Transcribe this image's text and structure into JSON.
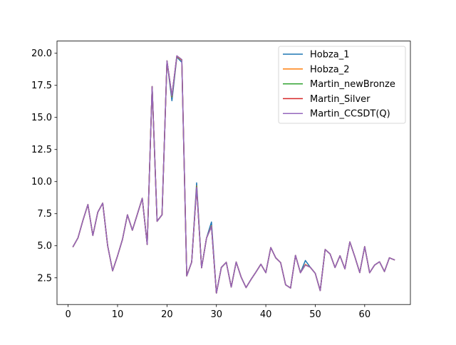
{
  "chart_data": {
    "type": "line",
    "title": "",
    "xlabel": "",
    "ylabel": "",
    "xlim": [
      -2.25,
      69.25
    ],
    "ylim": [
      0.42,
      20.95
    ],
    "x_ticks": [
      0,
      10,
      20,
      30,
      40,
      50,
      60
    ],
    "x_tick_labels": [
      "0",
      "10",
      "20",
      "30",
      "40",
      "50",
      "60"
    ],
    "y_ticks": [
      2.5,
      5.0,
      7.5,
      10.0,
      12.5,
      15.0,
      17.5,
      20.0
    ],
    "y_tick_labels": [
      "2.5",
      "5.0",
      "7.5",
      "10.0",
      "12.5",
      "15.0",
      "17.5",
      "20.0"
    ],
    "grid": false,
    "legend_position": "top-right",
    "x": [
      1,
      2,
      3,
      4,
      5,
      6,
      7,
      8,
      9,
      10,
      11,
      12,
      13,
      14,
      15,
      16,
      17,
      18,
      19,
      20,
      21,
      22,
      23,
      24,
      25,
      26,
      27,
      28,
      29,
      30,
      31,
      32,
      33,
      34,
      35,
      36,
      37,
      38,
      39,
      40,
      41,
      42,
      43,
      44,
      45,
      46,
      47,
      48,
      49,
      50,
      51,
      52,
      53,
      54,
      55,
      56,
      57,
      58,
      59,
      60,
      61,
      62,
      63,
      64,
      65,
      66
    ],
    "series": [
      {
        "name": "Hobza_1",
        "color": "#1f77b4",
        "values": [
          4.93,
          5.62,
          6.98,
          8.21,
          5.8,
          7.61,
          8.32,
          5.0,
          3.05,
          4.21,
          5.5,
          7.41,
          6.21,
          7.45,
          8.7,
          5.1,
          17.4,
          6.91,
          7.41,
          19.4,
          16.3,
          19.7,
          19.3,
          2.65,
          3.73,
          9.9,
          3.28,
          5.6,
          6.85,
          1.31,
          3.31,
          3.71,
          1.78,
          3.73,
          2.56,
          1.74,
          2.37,
          2.95,
          3.56,
          2.9,
          4.86,
          4.06,
          3.68,
          1.96,
          1.7,
          4.25,
          2.9,
          3.85,
          3.32,
          2.85,
          1.5,
          4.71,
          4.36,
          3.3,
          4.22,
          3.2,
          5.3,
          4.15,
          2.91,
          4.93,
          2.9,
          3.49,
          3.75,
          2.99,
          4.06,
          3.9
        ]
      },
      {
        "name": "Hobza_2",
        "color": "#ff7f0e",
        "values": [
          4.93,
          5.62,
          6.98,
          8.21,
          5.8,
          7.61,
          8.32,
          5.0,
          3.05,
          4.21,
          5.5,
          7.41,
          6.21,
          7.45,
          8.7,
          5.1,
          17.4,
          6.91,
          7.41,
          19.4,
          16.6,
          19.75,
          19.45,
          2.65,
          3.73,
          9.65,
          3.28,
          5.6,
          6.55,
          1.31,
          3.31,
          3.71,
          1.78,
          3.73,
          2.56,
          1.74,
          2.37,
          2.95,
          3.56,
          2.9,
          4.86,
          4.06,
          3.68,
          1.96,
          1.7,
          4.25,
          2.9,
          3.55,
          3.32,
          2.85,
          1.5,
          4.71,
          4.36,
          3.3,
          4.22,
          3.2,
          5.3,
          4.15,
          2.91,
          4.93,
          2.9,
          3.49,
          3.75,
          2.99,
          4.06,
          3.9
        ]
      },
      {
        "name": "Martin_newBronze",
        "color": "#2ca02c",
        "values": [
          4.93,
          5.62,
          6.98,
          8.21,
          5.8,
          7.61,
          8.32,
          5.0,
          3.05,
          4.21,
          5.5,
          7.41,
          6.21,
          7.45,
          8.7,
          5.1,
          17.4,
          6.91,
          7.41,
          19.4,
          16.65,
          19.78,
          19.5,
          2.65,
          3.73,
          9.6,
          3.28,
          5.6,
          6.5,
          1.31,
          3.31,
          3.71,
          1.78,
          3.73,
          2.56,
          1.74,
          2.37,
          2.95,
          3.56,
          2.9,
          4.86,
          4.06,
          3.68,
          1.96,
          1.7,
          4.25,
          2.9,
          3.5,
          3.32,
          2.85,
          1.5,
          4.71,
          4.36,
          3.3,
          4.22,
          3.2,
          5.3,
          4.15,
          2.91,
          4.93,
          2.9,
          3.49,
          3.75,
          2.99,
          4.06,
          3.9
        ]
      },
      {
        "name": "Martin_Silver",
        "color": "#d62728",
        "values": [
          4.93,
          5.62,
          6.98,
          8.21,
          5.8,
          7.61,
          8.32,
          5.0,
          3.05,
          4.21,
          5.5,
          7.41,
          6.21,
          7.45,
          8.7,
          5.1,
          17.4,
          6.91,
          7.41,
          19.4,
          16.7,
          19.8,
          19.5,
          2.65,
          3.73,
          9.55,
          3.28,
          5.6,
          6.5,
          1.31,
          3.31,
          3.71,
          1.78,
          3.73,
          2.56,
          1.74,
          2.37,
          2.95,
          3.56,
          2.9,
          4.86,
          4.06,
          3.68,
          1.96,
          1.7,
          4.25,
          2.9,
          3.5,
          3.32,
          2.85,
          1.5,
          4.71,
          4.36,
          3.3,
          4.22,
          3.2,
          5.3,
          4.15,
          2.91,
          4.93,
          2.9,
          3.49,
          3.75,
          2.99,
          4.06,
          3.9
        ]
      },
      {
        "name": "Martin_CCSDT(Q)",
        "color": "#9467bd",
        "values": [
          4.93,
          5.62,
          6.98,
          8.21,
          5.8,
          7.61,
          8.32,
          5.0,
          3.05,
          4.21,
          5.5,
          7.41,
          6.21,
          7.45,
          8.7,
          5.1,
          17.4,
          6.91,
          7.41,
          19.4,
          16.7,
          19.8,
          19.5,
          2.65,
          3.73,
          9.55,
          3.28,
          5.6,
          6.5,
          1.31,
          3.31,
          3.71,
          1.78,
          3.73,
          2.56,
          1.74,
          2.37,
          2.95,
          3.56,
          2.9,
          4.86,
          4.06,
          3.68,
          1.96,
          1.7,
          4.25,
          2.9,
          3.5,
          3.32,
          2.85,
          1.5,
          4.71,
          4.36,
          3.3,
          4.22,
          3.2,
          5.3,
          4.15,
          2.91,
          4.93,
          2.9,
          3.49,
          3.75,
          2.99,
          4.06,
          3.9
        ]
      }
    ]
  }
}
